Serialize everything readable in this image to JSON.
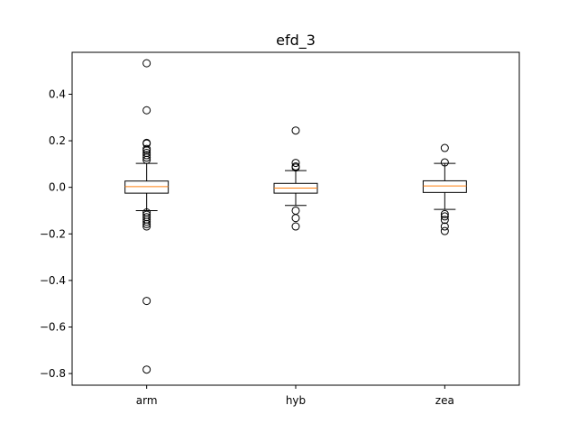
{
  "chart_data": {
    "type": "box",
    "title": "efd_3",
    "xlabel": "",
    "ylabel": "",
    "ylim": [
      -0.85,
      0.58
    ],
    "yticks": [
      {
        "value": 0.4,
        "label": "0.4"
      },
      {
        "value": 0.2,
        "label": "0.2"
      },
      {
        "value": 0.0,
        "label": "0.0"
      },
      {
        "value": -0.2,
        "label": "−0.2"
      },
      {
        "value": -0.4,
        "label": "−0.4"
      },
      {
        "value": -0.6,
        "label": "−0.6"
      },
      {
        "value": -0.8,
        "label": "−0.8"
      }
    ],
    "grid": false,
    "median_color": "#ff7f0e",
    "box_color": "#000000",
    "series": [
      {
        "category": "arm",
        "whisker_low": -0.1,
        "q1": -0.025,
        "median": 0.003,
        "q3": 0.027,
        "whisker_high": 0.103,
        "outliers": [
          0.533,
          0.331,
          0.191,
          0.188,
          0.165,
          0.158,
          0.148,
          0.138,
          0.128,
          0.118,
          -0.108,
          -0.118,
          -0.128,
          -0.138,
          -0.148,
          -0.158,
          -0.168,
          -0.488,
          -0.783
        ]
      },
      {
        "category": "hyb",
        "whisker_low": -0.078,
        "q1": -0.025,
        "median": -0.003,
        "q3": 0.017,
        "whisker_high": 0.072,
        "outliers": [
          0.244,
          0.105,
          0.09,
          0.085,
          -0.1,
          -0.132,
          -0.168
        ]
      },
      {
        "category": "zea",
        "whisker_low": -0.095,
        "q1": -0.022,
        "median": 0.006,
        "q3": 0.028,
        "whisker_high": 0.103,
        "outliers": [
          0.169,
          0.107,
          -0.115,
          -0.125,
          -0.14,
          -0.168,
          -0.188
        ]
      }
    ]
  }
}
